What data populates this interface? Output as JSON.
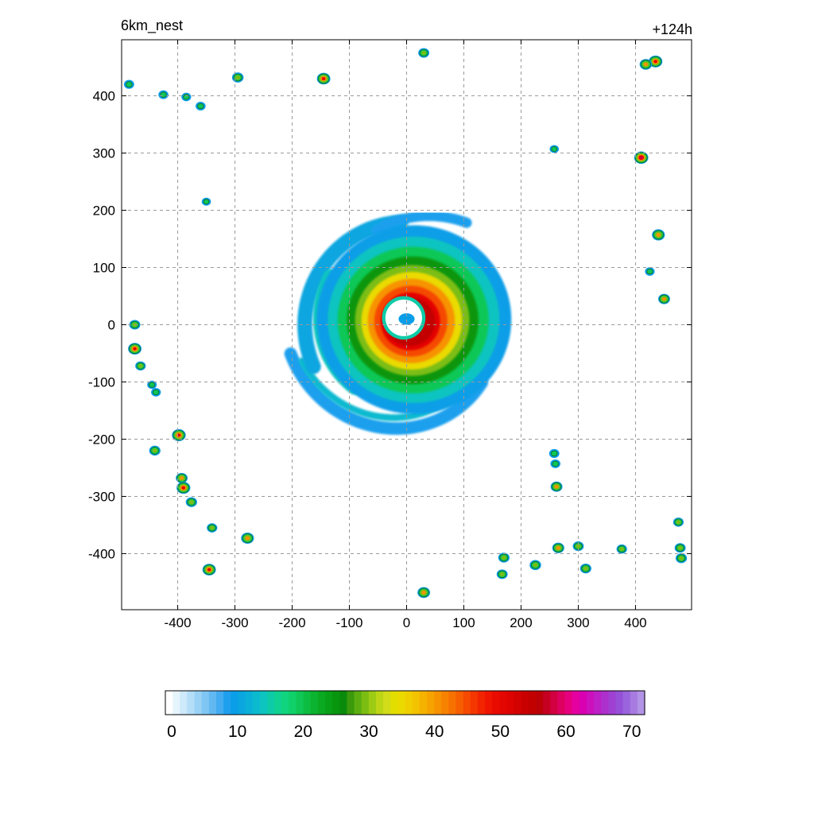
{
  "chart_data": {
    "type": "heatmap",
    "title_left": "6km_nest",
    "title_right": "+124h",
    "xlim": [
      -498,
      498
    ],
    "ylim": [
      -498,
      498
    ],
    "x_ticks": [
      -400,
      -300,
      -200,
      -100,
      0,
      100,
      200,
      300,
      400
    ],
    "y_ticks": [
      400,
      300,
      200,
      100,
      0,
      -100,
      -200,
      -300,
      -400
    ],
    "x_tick_labels": [
      "-400",
      "-300",
      "-200",
      "-100",
      "0",
      "100",
      "200",
      "300",
      "400"
    ],
    "y_tick_labels": [
      "400",
      "300",
      "200",
      "100",
      "0",
      "-100",
      "-200",
      "-300",
      "-400"
    ],
    "grid": true,
    "colorbar": {
      "min": 0,
      "max": 71,
      "ticks": [
        0,
        10,
        20,
        30,
        40,
        50,
        60,
        70
      ],
      "tick_labels": [
        "0",
        "10",
        "20",
        "30",
        "40",
        "50",
        "60",
        "70"
      ],
      "colors": [
        "#ffffff",
        "#e6f4fc",
        "#cde9fa",
        "#b4def8",
        "#9ad2f6",
        "#7fc6f4",
        "#62b9f2",
        "#43acf0",
        "#1fa0ee",
        "#0b9ee8",
        "#0aa6e0",
        "#0bb0d8",
        "#0cbad0",
        "#0dc4c0",
        "#0ecba8",
        "#0fd292",
        "#10d47e",
        "#10d06a",
        "#0fc756",
        "#0dbd42",
        "#0bb330",
        "#0aa922",
        "#08a016",
        "#08960e",
        "#0a8a0a",
        "#3a9a0c",
        "#5cae10",
        "#7cbd12",
        "#9ccb14",
        "#bcd616",
        "#d2dc18",
        "#e2df00",
        "#eada00",
        "#f0cf00",
        "#f3c200",
        "#f5b300",
        "#f6a300",
        "#f79300",
        "#f78200",
        "#f77100",
        "#f65e00",
        "#f54a00",
        "#f43600",
        "#f22400",
        "#ef1500",
        "#ea0b00",
        "#e40600",
        "#dc0300",
        "#d30200",
        "#ca0000",
        "#c20000",
        "#bc0008",
        "#c50020",
        "#d20040",
        "#de0060",
        "#e60080",
        "#e400a0",
        "#d800b0",
        "#cc10bc",
        "#bd20c6",
        "#ae30cc",
        "#a040d2",
        "#9650d8",
        "#9a64dc",
        "#a77be0",
        "#b393e6"
      ]
    },
    "features": {
      "eye": {
        "x": -5,
        "y": 12,
        "r": 38
      },
      "inner_core_center": {
        "x": 30,
        "y": 20
      },
      "isolated_cells": [
        {
          "x": -485,
          "y": 420,
          "v": 28
        },
        {
          "x": -425,
          "y": 402,
          "v": 26
        },
        {
          "x": -385,
          "y": 398,
          "v": 24
        },
        {
          "x": -360,
          "y": 382,
          "v": 26
        },
        {
          "x": -295,
          "y": 432,
          "v": 38
        },
        {
          "x": -145,
          "y": 430,
          "v": 52
        },
        {
          "x": 30,
          "y": 475,
          "v": 34
        },
        {
          "x": 435,
          "y": 460,
          "v": 54
        },
        {
          "x": 418,
          "y": 455,
          "v": 44
        },
        {
          "x": 410,
          "y": 292,
          "v": 58
        },
        {
          "x": 440,
          "y": 157,
          "v": 48
        },
        {
          "x": 450,
          "y": 45,
          "v": 40
        },
        {
          "x": 258,
          "y": 307,
          "v": 20
        },
        {
          "x": -475,
          "y": 0,
          "v": 34
        },
        {
          "x": -475,
          "y": -42,
          "v": 52
        },
        {
          "x": -465,
          "y": -72,
          "v": 30
        },
        {
          "x": -445,
          "y": -105,
          "v": 22
        },
        {
          "x": -438,
          "y": -118,
          "v": 24
        },
        {
          "x": -440,
          "y": -220,
          "v": 36
        },
        {
          "x": -398,
          "y": -193,
          "v": 55
        },
        {
          "x": -393,
          "y": -268,
          "v": 40
        },
        {
          "x": -390,
          "y": -285,
          "v": 55
        },
        {
          "x": -376,
          "y": -310,
          "v": 36
        },
        {
          "x": -340,
          "y": -355,
          "v": 30
        },
        {
          "x": -278,
          "y": -373,
          "v": 48
        },
        {
          "x": -345,
          "y": -428,
          "v": 52
        },
        {
          "x": 30,
          "y": -468,
          "v": 46
        },
        {
          "x": 170,
          "y": -407,
          "v": 36
        },
        {
          "x": 167,
          "y": -436,
          "v": 34
        },
        {
          "x": 225,
          "y": -420,
          "v": 38
        },
        {
          "x": 265,
          "y": -390,
          "v": 42
        },
        {
          "x": 262,
          "y": -283,
          "v": 40
        },
        {
          "x": 258,
          "y": -225,
          "v": 28
        },
        {
          "x": 260,
          "y": -243,
          "v": 26
        },
        {
          "x": 300,
          "y": -387,
          "v": 34
        },
        {
          "x": 313,
          "y": -426,
          "v": 36
        },
        {
          "x": 376,
          "y": -392,
          "v": 30
        },
        {
          "x": 475,
          "y": -345,
          "v": 30
        },
        {
          "x": 478,
          "y": -390,
          "v": 34
        },
        {
          "x": 480,
          "y": -408,
          "v": 36
        },
        {
          "x": 425,
          "y": 93,
          "v": 24
        },
        {
          "x": -350,
          "y": 215,
          "v": 20
        }
      ]
    }
  }
}
